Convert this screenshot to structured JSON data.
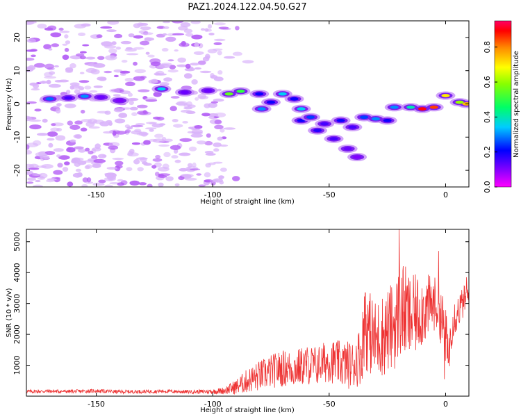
{
  "chart_data": [
    {
      "type": "heatmap",
      "title": "PAZ1.2024.122.04.50.G27",
      "xlabel": "Height of straight line (km)",
      "ylabel": "Frequency (Hz)",
      "xlim": [
        -180,
        10
      ],
      "ylim": [
        -25,
        25
      ],
      "xticks": [
        -150,
        -100,
        -50,
        0
      ],
      "yticks": [
        -20,
        -10,
        0,
        10,
        20
      ],
      "colorbar": {
        "label": "Normalized spectral amplitude",
        "range": [
          0,
          0.95
        ],
        "ticks": [
          0.0,
          0.2,
          0.4,
          0.6,
          0.8
        ],
        "colormap": "gist_rainbow_r (magenta-blue-cyan-green-yellow-red)",
        "position": "right"
      },
      "grid": false,
      "noise_region": {
        "x": [
          -180,
          -95
        ],
        "y": [
          -25,
          25
        ],
        "amplitude": 0.05
      },
      "ridge": {
        "description": "main bright band near 0 Hz with a branch sloping down toward -15 Hz",
        "points": [
          {
            "x": -170,
            "y": 1.5,
            "amp": 0.28
          },
          {
            "x": -162,
            "y": 1.8,
            "amp": 0.15
          },
          {
            "x": -155,
            "y": 2.3,
            "amp": 0.3
          },
          {
            "x": -148,
            "y": 2.0,
            "amp": 0.12
          },
          {
            "x": -140,
            "y": 1.0,
            "amp": 0.1
          },
          {
            "x": -122,
            "y": 4.5,
            "amp": 0.35
          },
          {
            "x": -112,
            "y": 3.5,
            "amp": 0.12
          },
          {
            "x": -102,
            "y": 4.0,
            "amp": 0.12
          },
          {
            "x": -93,
            "y": 3.0,
            "amp": 0.55
          },
          {
            "x": -88,
            "y": 3.8,
            "amp": 0.5
          },
          {
            "x": -80,
            "y": 3.0,
            "amp": 0.2
          },
          {
            "x": -79,
            "y": -1.5,
            "amp": 0.3
          },
          {
            "x": -75,
            "y": 0.5,
            "amp": 0.2
          },
          {
            "x": -70,
            "y": 3.0,
            "amp": 0.35
          },
          {
            "x": -65,
            "y": 1.5,
            "amp": 0.2
          },
          {
            "x": -62,
            "y": -1.5,
            "amp": 0.35
          },
          {
            "x": -58,
            "y": -4.0,
            "amp": 0.25
          },
          {
            "x": -52,
            "y": -6.0,
            "amp": 0.15
          },
          {
            "x": -45,
            "y": -5.0,
            "amp": 0.2
          },
          {
            "x": -40,
            "y": -7.0,
            "amp": 0.15
          },
          {
            "x": -35,
            "y": -4.0,
            "amp": 0.25
          },
          {
            "x": -30,
            "y": -4.5,
            "amp": 0.3
          },
          {
            "x": -25,
            "y": -5.0,
            "amp": 0.2
          },
          {
            "x": -22,
            "y": -1.0,
            "amp": 0.3
          },
          {
            "x": -15,
            "y": -1.0,
            "amp": 0.4
          },
          {
            "x": -10,
            "y": -1.5,
            "amp": 0.9
          },
          {
            "x": -5,
            "y": -1.0,
            "amp": 0.85
          },
          {
            "x": 0,
            "y": 2.5,
            "amp": 0.7
          },
          {
            "x": 6,
            "y": 0.5,
            "amp": 0.6
          },
          {
            "x": 9,
            "y": 0.0,
            "amp": 0.75
          }
        ],
        "branch": [
          {
            "x": -62,
            "y": -5.0,
            "amp": 0.2
          },
          {
            "x": -55,
            "y": -8.0,
            "amp": 0.18
          },
          {
            "x": -48,
            "y": -10.5,
            "amp": 0.15
          },
          {
            "x": -42,
            "y": -13.5,
            "amp": 0.12
          },
          {
            "x": -38,
            "y": -16.0,
            "amp": 0.1
          }
        ]
      }
    },
    {
      "type": "line",
      "xlabel": "Height of straight line (km)",
      "ylabel": "SNR (10 * v/v)",
      "xlim": [
        -180,
        10
      ],
      "ylim": [
        0,
        5400
      ],
      "xticks": [
        -150,
        -100,
        -50,
        0
      ],
      "yticks": [
        1000,
        2000,
        3000,
        4000,
        5000
      ],
      "grid": false,
      "series": [
        {
          "color": "#ee3333",
          "x": [
            -180,
            -170,
            -160,
            -150,
            -140,
            -130,
            -120,
            -110,
            -100,
            -95,
            -90,
            -85,
            -80,
            -75,
            -70,
            -65,
            -60,
            -55,
            -50,
            -45,
            -40,
            -36,
            -35,
            -30,
            -25,
            -21,
            -20,
            -15,
            -10,
            -5,
            -3,
            0,
            1,
            3,
            5,
            8,
            10
          ],
          "values": [
            150,
            160,
            150,
            170,
            140,
            150,
            160,
            140,
            150,
            180,
            300,
            500,
            650,
            800,
            900,
            900,
            1000,
            1000,
            1150,
            1050,
            1000,
            1400,
            2300,
            1800,
            2100,
            2400,
            2900,
            2500,
            2800,
            3000,
            2900,
            2000,
            1200,
            2500,
            2700,
            3100,
            3300
          ],
          "noise_amplitude": [
            60,
            60,
            60,
            60,
            60,
            60,
            60,
            60,
            80,
            120,
            250,
            400,
            500,
            550,
            600,
            600,
            650,
            650,
            700,
            750,
            800,
            1000,
            1400,
            1300,
            1400,
            1500,
            1700,
            1400,
            1200,
            900,
            900,
            1000,
            800,
            700,
            600,
            500,
            450
          ],
          "spikes": [
            {
              "x": -34.5,
              "y": 3350
            },
            {
              "x": -20,
              "y": 5400
            },
            {
              "x": -3,
              "y": 4700
            },
            {
              "x": -0.5,
              "y": 550
            },
            {
              "x": 9,
              "y": 3850
            }
          ]
        }
      ]
    }
  ]
}
